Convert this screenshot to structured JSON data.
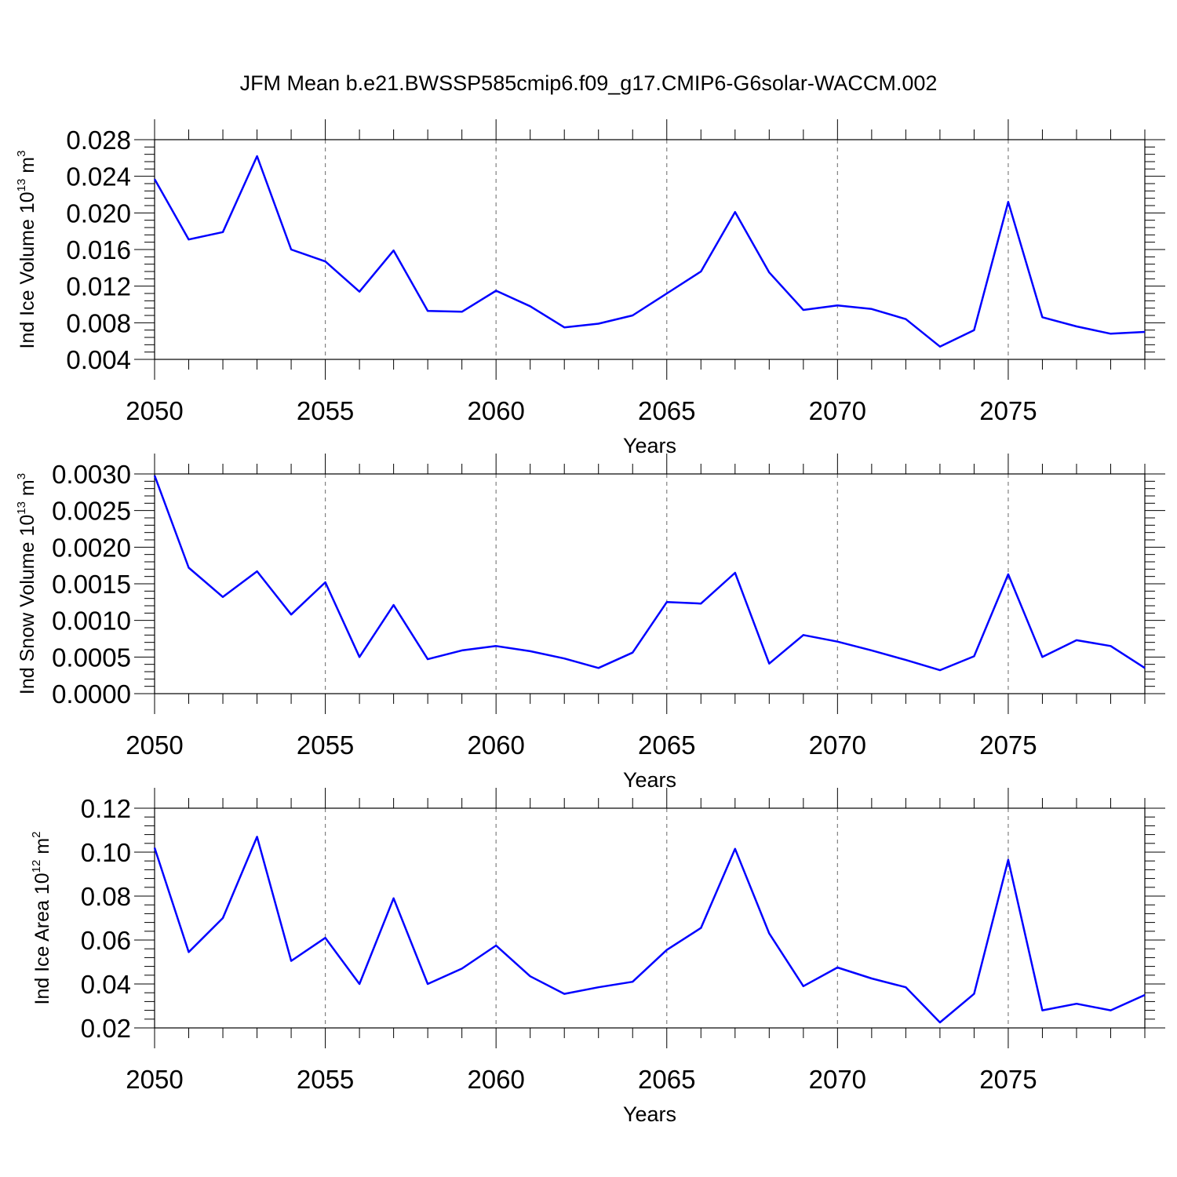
{
  "title": "JFM Mean b.e21.BWSSP585cmip6.f09_g17.CMIP6-G6solar-WACCM.002",
  "colors": {
    "line": "#0000ff",
    "axis": "#000000",
    "grid": "#808080"
  },
  "chart_data": [
    {
      "type": "line",
      "ylabel": {
        "main": "Ind Ice Volume 10",
        "sup1": "13",
        "mid": " m",
        "sup2": "3"
      },
      "xlabel": "Years",
      "xlim": [
        2050,
        2079
      ],
      "ylim": [
        0.004,
        0.028
      ],
      "xticks": [
        2050,
        2055,
        2060,
        2065,
        2070,
        2075
      ],
      "xticklabels": [
        "2050",
        "2055",
        "2060",
        "2065",
        "2070",
        "2075"
      ],
      "yticks": [
        0.004,
        0.008,
        0.012,
        0.016,
        0.02,
        0.024,
        0.028
      ],
      "yticklabels": [
        "0.004",
        "0.008",
        "0.012",
        "0.016",
        "0.020",
        "0.024",
        "0.028"
      ],
      "grid": "vertical dashed at major x ticks",
      "x": [
        2050,
        2051,
        2052,
        2053,
        2054,
        2055,
        2056,
        2057,
        2058,
        2059,
        2060,
        2061,
        2062,
        2063,
        2064,
        2065,
        2066,
        2067,
        2068,
        2069,
        2070,
        2071,
        2072,
        2073,
        2074,
        2075,
        2076,
        2077,
        2078,
        2079
      ],
      "values": [
        0.0237,
        0.0171,
        0.0179,
        0.0262,
        0.016,
        0.0147,
        0.0114,
        0.0159,
        0.0093,
        0.0092,
        0.0115,
        0.0098,
        0.0075,
        0.0079,
        0.0088,
        0.0112,
        0.0136,
        0.0201,
        0.0135,
        0.0094,
        0.0099,
        0.0095,
        0.0084,
        0.0054,
        0.0072,
        0.0212,
        0.0086,
        0.0076,
        0.0068,
        0.007
      ]
    },
    {
      "type": "line",
      "ylabel": {
        "main": "Ind Snow Volume 10",
        "sup1": "13",
        "mid": " m",
        "sup2": "3"
      },
      "xlabel": "Years",
      "xlim": [
        2050,
        2079
      ],
      "ylim": [
        0.0,
        0.003
      ],
      "xticks": [
        2050,
        2055,
        2060,
        2065,
        2070,
        2075
      ],
      "xticklabels": [
        "2050",
        "2055",
        "2060",
        "2065",
        "2070",
        "2075"
      ],
      "yticks": [
        0.0,
        0.0005,
        0.001,
        0.0015,
        0.002,
        0.0025,
        0.003
      ],
      "yticklabels": [
        "0.0000",
        "0.0005",
        "0.0010",
        "0.0015",
        "0.0020",
        "0.0025",
        "0.0030"
      ],
      "grid": "vertical dashed at major x ticks",
      "x": [
        2050,
        2051,
        2052,
        2053,
        2054,
        2055,
        2056,
        2057,
        2058,
        2059,
        2060,
        2061,
        2062,
        2063,
        2064,
        2065,
        2066,
        2067,
        2068,
        2069,
        2070,
        2071,
        2072,
        2073,
        2074,
        2075,
        2076,
        2077,
        2078,
        2079
      ],
      "values": [
        0.00298,
        0.00172,
        0.00132,
        0.00167,
        0.00108,
        0.00152,
        0.0005,
        0.00121,
        0.00047,
        0.00059,
        0.00065,
        0.00058,
        0.00048,
        0.00035,
        0.00056,
        0.00125,
        0.00123,
        0.00165,
        0.00041,
        0.0008,
        0.00071,
        0.00059,
        0.00046,
        0.00032,
        0.00051,
        0.00163,
        0.0005,
        0.00073,
        0.00065,
        0.00035
      ]
    },
    {
      "type": "line",
      "ylabel": {
        "main": "Ind Ice Area 10",
        "sup1": "12",
        "mid": " m",
        "sup2": "2"
      },
      "xlabel": "Years",
      "xlim": [
        2050,
        2079
      ],
      "ylim": [
        0.02,
        0.12
      ],
      "xticks": [
        2050,
        2055,
        2060,
        2065,
        2070,
        2075
      ],
      "xticklabels": [
        "2050",
        "2055",
        "2060",
        "2065",
        "2070",
        "2075"
      ],
      "yticks": [
        0.02,
        0.04,
        0.06,
        0.08,
        0.1,
        0.12
      ],
      "yticklabels": [
        "0.02",
        "0.04",
        "0.06",
        "0.08",
        "0.10",
        "0.12"
      ],
      "grid": "vertical dashed at major x ticks",
      "x": [
        2050,
        2051,
        2052,
        2053,
        2054,
        2055,
        2056,
        2057,
        2058,
        2059,
        2060,
        2061,
        2062,
        2063,
        2064,
        2065,
        2066,
        2067,
        2068,
        2069,
        2070,
        2071,
        2072,
        2073,
        2074,
        2075,
        2076,
        2077,
        2078,
        2079
      ],
      "values": [
        0.102,
        0.0545,
        0.07,
        0.107,
        0.0505,
        0.061,
        0.04,
        0.079,
        0.04,
        0.047,
        0.0575,
        0.0435,
        0.0355,
        0.0385,
        0.041,
        0.0555,
        0.0655,
        0.1015,
        0.063,
        0.039,
        0.0475,
        0.0425,
        0.0385,
        0.0225,
        0.0355,
        0.0965,
        0.028,
        0.031,
        0.028,
        0.035
      ]
    }
  ]
}
